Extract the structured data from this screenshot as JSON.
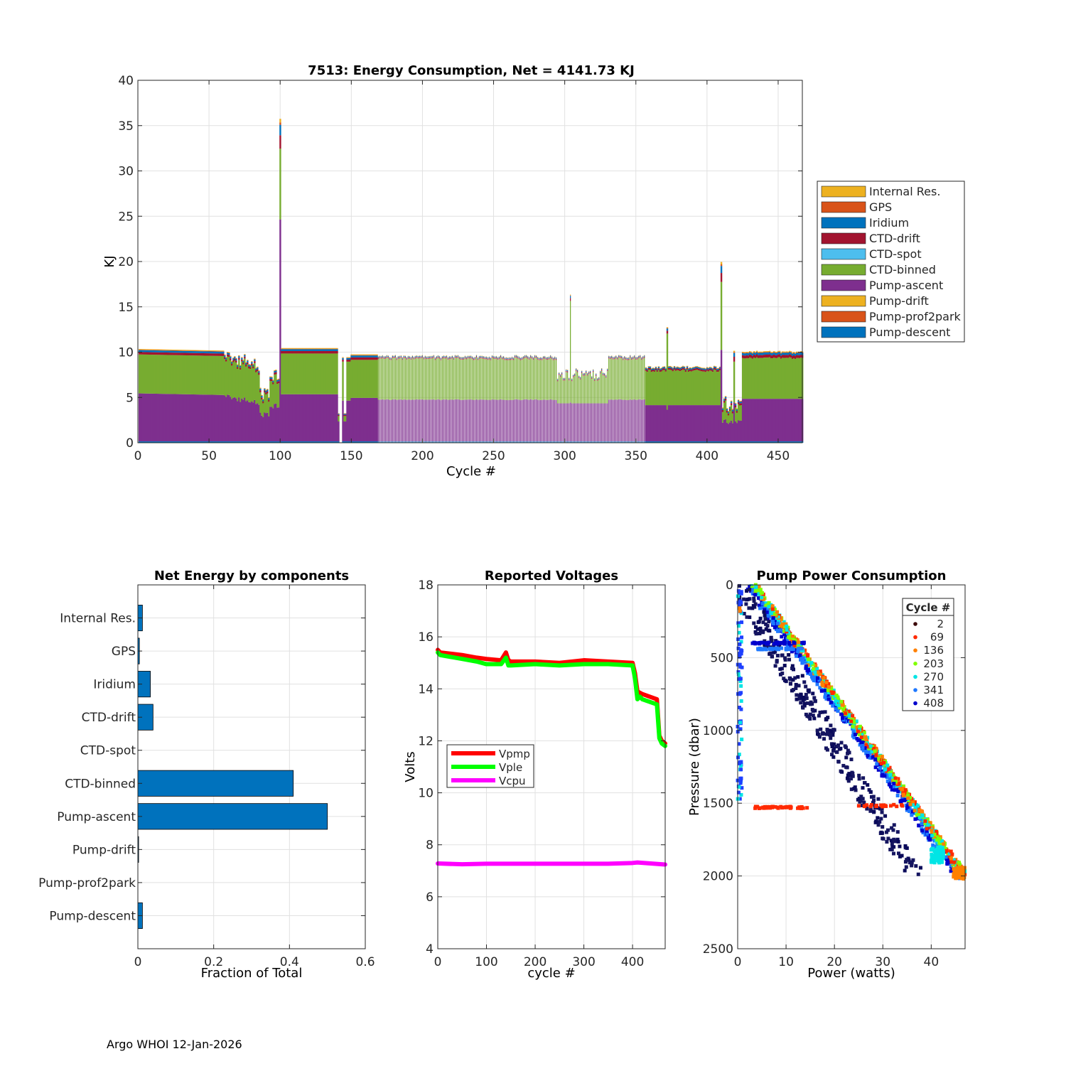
{
  "footer": "Argo WHOI 12-Jan-2026",
  "chart_data": [
    {
      "type": "bar",
      "stacked": true,
      "title": "7513: Energy Consumption,  Net = 4141.73 KJ",
      "xlabel": "Cycle #",
      "ylabel": "KJ",
      "xlim": [
        0,
        467
      ],
      "ylim": [
        0,
        40
      ],
      "xticks": [
        0,
        50,
        100,
        150,
        200,
        250,
        300,
        350,
        400,
        450
      ],
      "yticks": [
        0,
        5,
        10,
        15,
        20,
        25,
        30,
        35,
        40
      ],
      "grid": true,
      "legend_position": "outside-right",
      "legend": [
        "Internal Res.",
        "GPS",
        "Iridium",
        "CTD-drift",
        "CTD-spot",
        "CTD-binned",
        "Pump-ascent",
        "Pump-drift",
        "Pump-prof2park",
        "Pump-descent"
      ],
      "colors": {
        "Internal Res.": "#EDB120",
        "GPS": "#D95319",
        "Iridium": "#0072BD",
        "CTD-drift": "#A2142F",
        "CTD-spot": "#4DBEEE",
        "CTD-binned": "#77AC30",
        "Pump-ascent": "#7E2F8E",
        "Pump-drift": "#EDB120",
        "Pump-prof2park": "#D95319",
        "Pump-descent": "#0072BD"
      },
      "profile": [
        {
          "cycles": [
            1,
            99
          ],
          "pump_ascent": 5.2,
          "ctd_binned": 4.3,
          "top_components": 0.5
        },
        {
          "cycle": 100,
          "pump_ascent": 24.5,
          "ctd_binned": 7.8,
          "top_components": 3.3,
          "total": 35.6
        },
        {
          "cycles": [
            101,
            140
          ],
          "pump_ascent": 5.2,
          "ctd_binned": 4.5,
          "top_components": 0.5
        },
        {
          "cycles": [
            150,
            168
          ],
          "pump_ascent": 4.8,
          "ctd_binned": 4.2,
          "top_components": 0.5
        },
        {
          "cycles": [
            169,
            356
          ],
          "pump_ascent": 4.6,
          "ctd_binned": 4.5,
          "top_components": 0.3,
          "note": "gaps between bars"
        },
        {
          "cycle": 304,
          "total": 16.2
        },
        {
          "cycles": [
            357,
            410
          ],
          "pump_ascent": 4.0,
          "ctd_binned": 3.8,
          "top_components": 0.4
        },
        {
          "cycle": 372,
          "total": 12.6
        },
        {
          "cycle": 410,
          "pump_ascent": 10.1,
          "ctd_binned": 7.5,
          "top_components": 2.2,
          "total": 19.8
        },
        {
          "cycles": [
            425,
            467
          ],
          "pump_ascent": 4.7,
          "ctd_binned": 4.5,
          "top_components": 0.7
        }
      ]
    },
    {
      "type": "bar",
      "orientation": "horizontal",
      "title": "Net Energy by components",
      "xlabel": "Fraction of Total",
      "xlim": [
        0,
        0.6
      ],
      "xticks": [
        0,
        0.2,
        0.4,
        0.6
      ],
      "grid": true,
      "color": "#0072BD",
      "categories": [
        "Internal Res.",
        "GPS",
        "Iridium",
        "CTD-drift",
        "CTD-spot",
        "CTD-binned",
        "Pump-ascent",
        "Pump-drift",
        "Pump-prof2park",
        "Pump-descent"
      ],
      "values": [
        0.012,
        0.004,
        0.033,
        0.04,
        0.0,
        0.41,
        0.5,
        0.002,
        0.0,
        0.012
      ]
    },
    {
      "type": "line",
      "title": "Reported Voltages",
      "xlabel": "cycle #",
      "ylabel": "Volts",
      "xlim": [
        0,
        467
      ],
      "ylim": [
        4,
        18
      ],
      "xticks": [
        0,
        100,
        200,
        300,
        400
      ],
      "yticks": [
        4,
        6,
        8,
        10,
        12,
        14,
        16,
        18
      ],
      "grid": true,
      "legend_position": "middle-left",
      "series": [
        {
          "name": "Vpmp",
          "color": "#FF0000",
          "x": [
            0,
            5,
            50,
            80,
            100,
            130,
            140,
            145,
            150,
            200,
            250,
            300,
            350,
            400,
            405,
            410,
            415,
            420,
            450,
            455,
            460,
            467
          ],
          "y": [
            15.5,
            15.4,
            15.3,
            15.2,
            15.15,
            15.1,
            15.4,
            15.1,
            15.05,
            15.05,
            15.0,
            15.1,
            15.05,
            15.0,
            14.6,
            13.9,
            13.85,
            13.8,
            13.6,
            12.2,
            12.0,
            11.9
          ]
        },
        {
          "name": "Vple",
          "color": "#00FF00",
          "x": [
            0,
            5,
            50,
            80,
            100,
            130,
            140,
            145,
            150,
            200,
            250,
            300,
            350,
            400,
            405,
            410,
            415,
            420,
            450,
            455,
            460,
            467
          ],
          "y": [
            15.4,
            15.3,
            15.15,
            15.05,
            14.95,
            14.95,
            15.2,
            14.9,
            14.9,
            14.95,
            14.9,
            14.95,
            14.95,
            14.9,
            14.4,
            13.6,
            13.7,
            13.6,
            13.4,
            12.1,
            11.9,
            11.8
          ]
        },
        {
          "name": "Vcpu",
          "color": "#FF00FF",
          "x": [
            0,
            50,
            100,
            150,
            200,
            250,
            300,
            350,
            400,
            410,
            467
          ],
          "y": [
            7.28,
            7.25,
            7.27,
            7.27,
            7.27,
            7.27,
            7.27,
            7.27,
            7.3,
            7.32,
            7.24
          ]
        }
      ]
    },
    {
      "type": "scatter",
      "title": "Pump Power Consumption",
      "xlabel": "Power (watts)",
      "ylabel": "Pressure (dbar)",
      "xlim": [
        0,
        47
      ],
      "ylim": [
        0,
        2500
      ],
      "y_reversed": true,
      "xticks": [
        0,
        10,
        20,
        30,
        40
      ],
      "yticks": [
        0,
        500,
        1000,
        1500,
        2000,
        2500
      ],
      "grid": true,
      "legend_title": "Cycle #",
      "legend_position": "top-right",
      "series": [
        {
          "name": "2",
          "color": "#3D0A0A"
        },
        {
          "name": "69",
          "color": "#FF2A00"
        },
        {
          "name": "136",
          "color": "#FF8000"
        },
        {
          "name": "203",
          "color": "#80FF00"
        },
        {
          "name": "270",
          "color": "#00E5E5"
        },
        {
          "name": "341",
          "color": "#1E78FF"
        },
        {
          "name": "408",
          "color": "#0000CC"
        }
      ],
      "trend": {
        "main_line": {
          "power_at_0dbar": 3.3,
          "power_at_2000dbar": 47,
          "pressure_max": 2020
        },
        "offset_branch": {
          "power_at_0dbar": 4,
          "power_at_1950dbar": 40
        },
        "low_power_cluster": {
          "power_range": [
            0,
            1
          ],
          "pressure_range": [
            0,
            1480
          ]
        },
        "horizontal_bands": [
          {
            "pressure": 400,
            "power_range": [
              3,
              14
            ]
          },
          {
            "pressure": 440,
            "power_range": [
              4,
              14
            ]
          },
          {
            "pressure": 1530,
            "power_range": [
              3,
              15
            ]
          }
        ]
      }
    }
  ]
}
